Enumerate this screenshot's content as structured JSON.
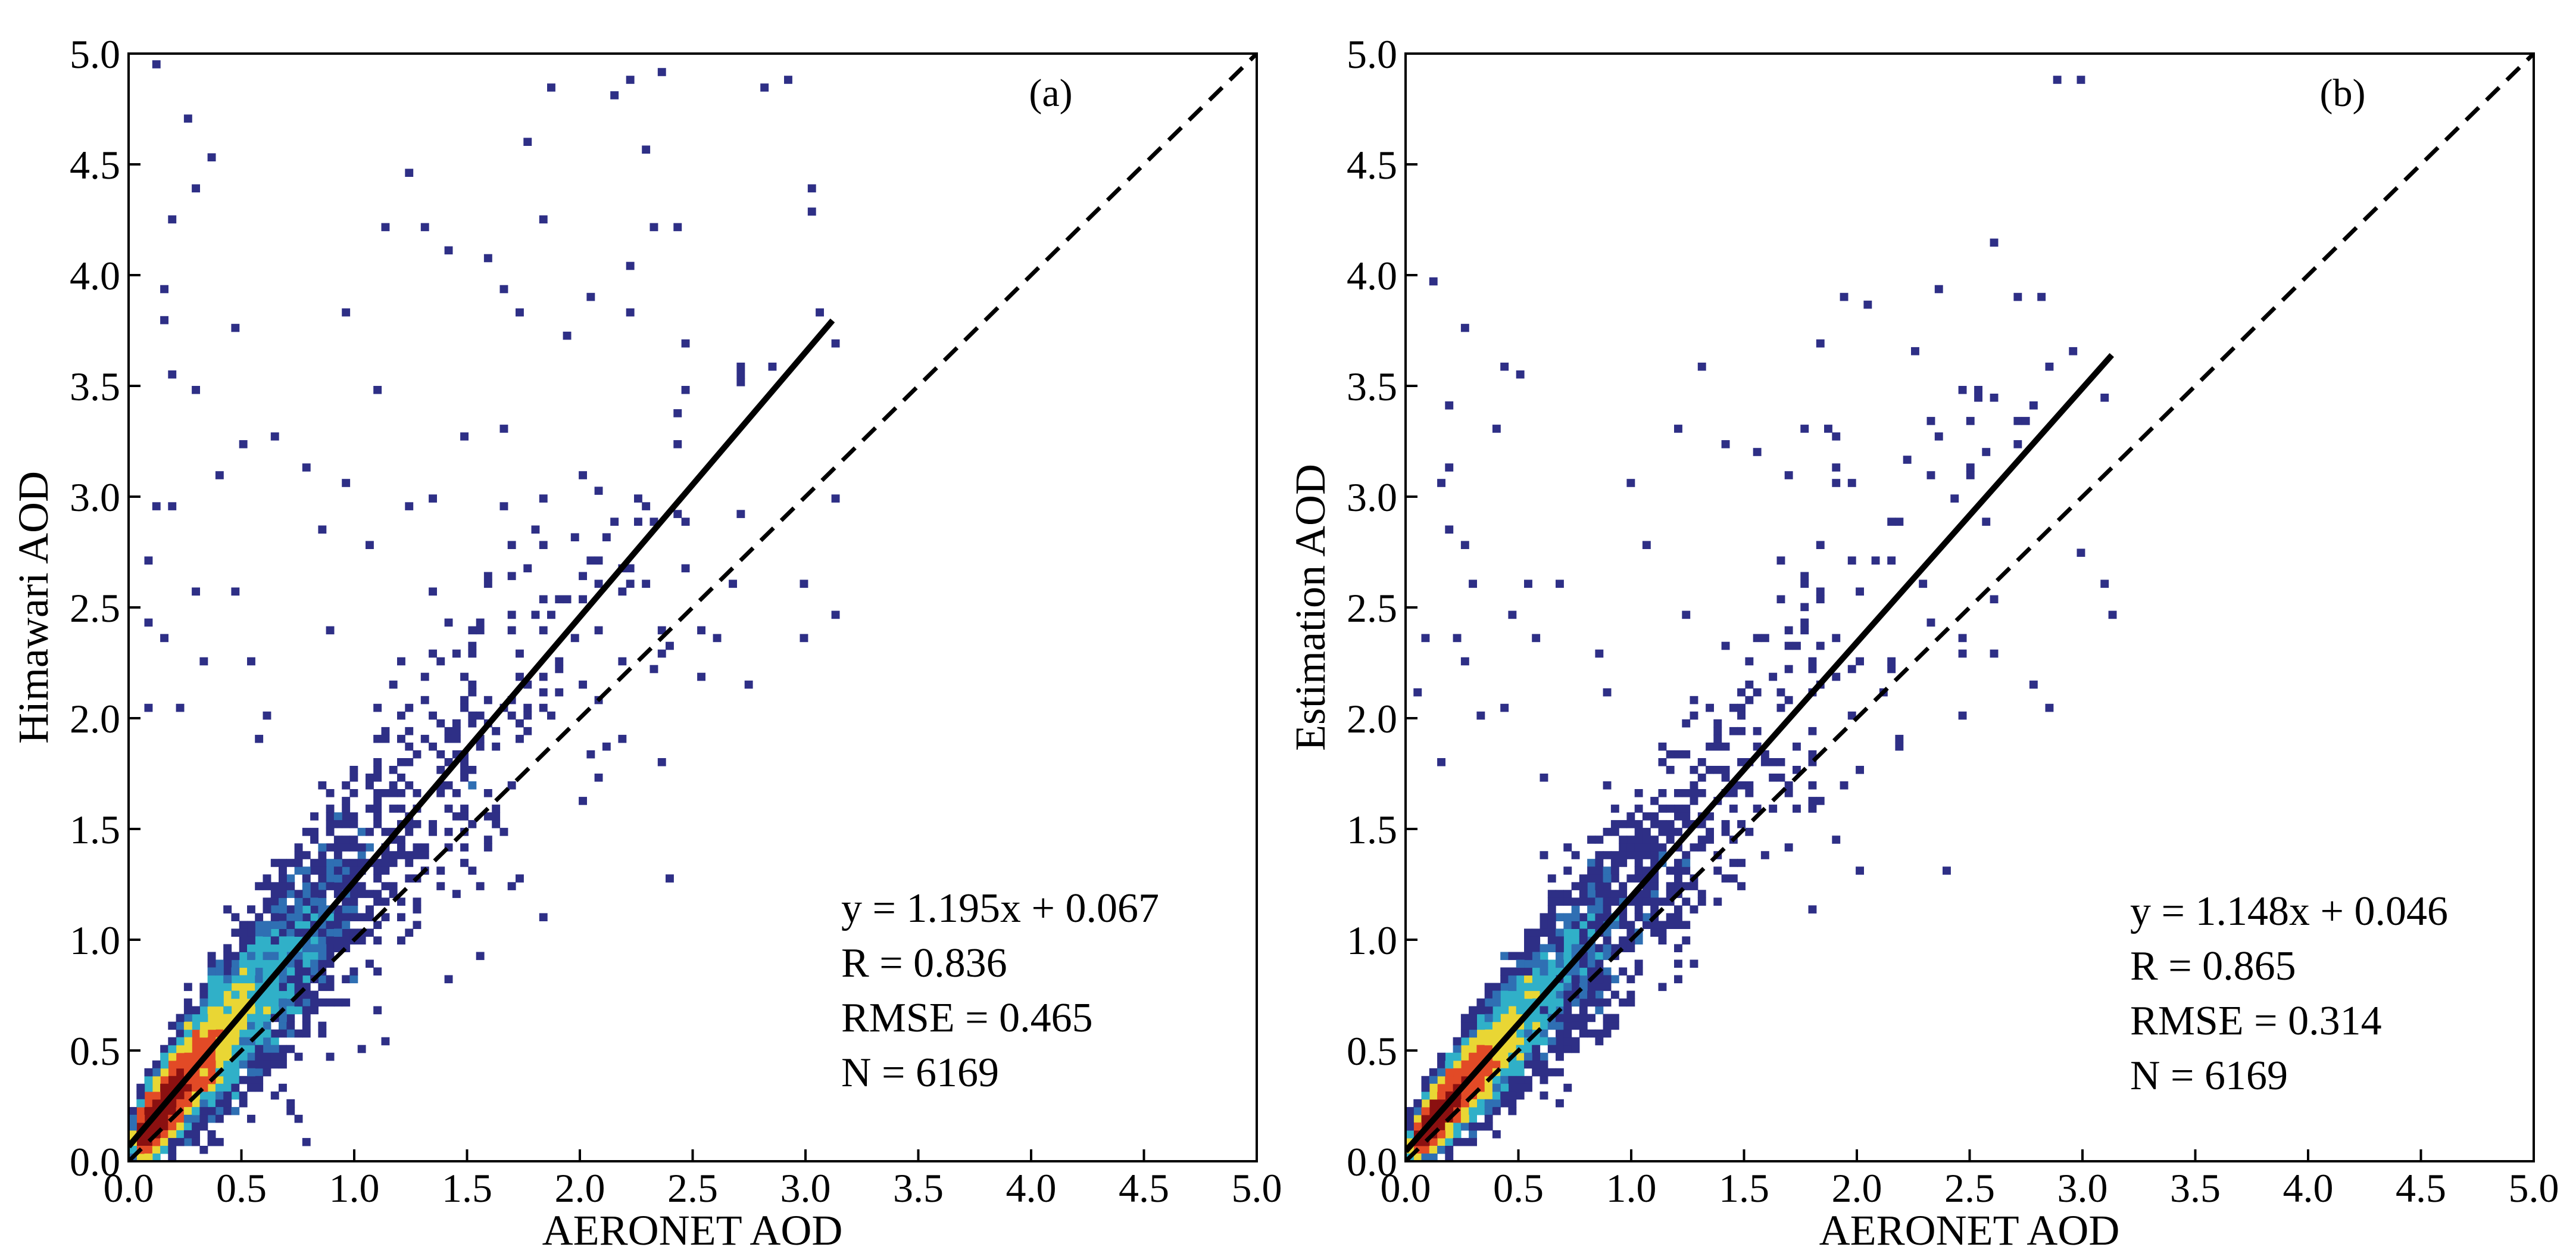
{
  "figure_title": "",
  "colors": {
    "background": "#ffffff",
    "axes": "#000000",
    "fit_line": "#000000",
    "one_to_one": "#000000",
    "density_low": "#2e2f86",
    "density_mid_low": "#2f6fb3",
    "density_mid": "#30b0c8",
    "density_mid_high": "#e9d634",
    "density_high": "#e24a26",
    "density_peak": "#8b1010"
  },
  "chart_data": [
    {
      "type": "scatter",
      "panel": "(a)",
      "title": "",
      "xlabel": "AERONET AOD",
      "ylabel": "Himawari AOD",
      "xlim": [
        0.0,
        5.0
      ],
      "ylim": [
        0.0,
        5.0
      ],
      "xticks": [
        "0.0",
        "0.5",
        "1.0",
        "1.5",
        "2.0",
        "2.5",
        "3.0",
        "3.5",
        "4.0",
        "4.5",
        "5.0"
      ],
      "yticks": [
        "0.0",
        "0.5",
        "1.0",
        "1.5",
        "2.0",
        "2.5",
        "3.0",
        "3.5",
        "4.0",
        "4.5",
        "5.0"
      ],
      "grid": false,
      "legend": "none",
      "density_colored": true,
      "fit_line": {
        "slope": 1.195,
        "intercept": 0.067,
        "x_range": [
          0.0,
          3.12
        ],
        "style": "solid"
      },
      "one_to_one_line": {
        "x_range": [
          0.0,
          5.0
        ],
        "style": "dashed"
      },
      "stats": [
        "y = 1.195x + 0.067",
        "R = 0.836",
        "RMSE = 0.465",
        "N = 6169"
      ],
      "outlier_points": [
        [
          0.12,
          4.97
        ],
        [
          0.26,
          4.7
        ],
        [
          0.37,
          4.53
        ],
        [
          0.29,
          4.4
        ],
        [
          0.19,
          4.24
        ],
        [
          0.17,
          3.95
        ],
        [
          0.14,
          3.8
        ],
        [
          0.2,
          3.55
        ],
        [
          0.28,
          3.5
        ],
        [
          0.4,
          3.1
        ],
        [
          0.5,
          3.25
        ],
        [
          0.13,
          2.97
        ],
        [
          0.21,
          2.96
        ],
        [
          0.07,
          2.7
        ],
        [
          0.46,
          2.58
        ],
        [
          0.3,
          2.58
        ],
        [
          0.08,
          2.44
        ],
        [
          0.17,
          2.35
        ],
        [
          0.1,
          2.05
        ],
        [
          0.95,
          3.85
        ],
        [
          1.1,
          3.5
        ],
        [
          1.15,
          4.2
        ],
        [
          1.25,
          4.47
        ],
        [
          1.32,
          4.23
        ],
        [
          1.42,
          4.1
        ],
        [
          1.6,
          4.08
        ],
        [
          1.65,
          3.95
        ],
        [
          1.75,
          3.85
        ],
        [
          1.78,
          4.6
        ],
        [
          1.88,
          4.86
        ],
        [
          1.85,
          4.25
        ],
        [
          2.14,
          4.82
        ],
        [
          2.22,
          4.87
        ],
        [
          2.35,
          4.9
        ],
        [
          2.28,
          4.58
        ],
        [
          2.32,
          4.2
        ],
        [
          2.22,
          3.84
        ],
        [
          2.42,
          4.2
        ],
        [
          2.48,
          3.5
        ],
        [
          2.45,
          2.9
        ],
        [
          2.52,
          2.4
        ],
        [
          2.61,
          2.36
        ],
        [
          2.75,
          2.17
        ],
        [
          3.0,
          2.37
        ],
        [
          2.92,
          4.88
        ],
        [
          2.82,
          4.85
        ],
        [
          3.0,
          2.6
        ],
        [
          3.12,
          2.47
        ],
        [
          2.4,
          1.27
        ],
        [
          2.06,
          1.85
        ],
        [
          1.95,
          3.72
        ],
        [
          2.06,
          3.9
        ],
        [
          0.48,
          3.75
        ],
        [
          0.65,
          3.28
        ],
        [
          0.8,
          3.15
        ],
        [
          0.95,
          3.05
        ],
        [
          1.25,
          2.95
        ],
        [
          1.5,
          3.28
        ],
        [
          0.55,
          2.25
        ],
        [
          0.62,
          2.0
        ],
        [
          0.9,
          2.4
        ],
        [
          1.05,
          2.8
        ],
        [
          1.7,
          1.25
        ],
        [
          1.82,
          1.1
        ],
        [
          2.2,
          1.9
        ],
        [
          2.3,
          2.6
        ],
        [
          0.35,
          2.25
        ],
        [
          0.24,
          2.05
        ],
        [
          0.56,
          1.9
        ],
        [
          1.2,
          2.25
        ],
        [
          0.85,
          2.85
        ],
        [
          1.35,
          3.0
        ]
      ]
    },
    {
      "type": "scatter",
      "panel": "(b)",
      "title": "",
      "xlabel": "AERONET AOD",
      "ylabel": "Estimation AOD",
      "xlim": [
        0.0,
        5.0
      ],
      "ylim": [
        0.0,
        5.0
      ],
      "xticks": [
        "0.0",
        "0.5",
        "1.0",
        "1.5",
        "2.0",
        "2.5",
        "3.0",
        "3.5",
        "4.0",
        "4.5",
        "5.0"
      ],
      "yticks": [
        "0.0",
        "0.5",
        "1.0",
        "1.5",
        "2.0",
        "2.5",
        "3.0",
        "3.5",
        "4.0",
        "4.5",
        "5.0"
      ],
      "grid": false,
      "legend": "none",
      "density_colored": true,
      "fit_line": {
        "slope": 1.148,
        "intercept": 0.046,
        "x_range": [
          0.0,
          3.13
        ],
        "style": "solid"
      },
      "one_to_one_line": {
        "x_range": [
          0.0,
          5.0
        ],
        "style": "dashed"
      },
      "stats": [
        "y = 1.148x + 0.046",
        "R = 0.865",
        "RMSE = 0.314",
        "N = 6169"
      ],
      "outlier_points": [
        [
          0.12,
          3.98
        ],
        [
          0.25,
          3.75
        ],
        [
          0.45,
          3.6
        ],
        [
          0.5,
          3.55
        ],
        [
          0.2,
          3.4
        ],
        [
          0.2,
          3.15
        ],
        [
          0.15,
          3.05
        ],
        [
          0.18,
          2.85
        ],
        [
          0.25,
          2.8
        ],
        [
          0.28,
          2.6
        ],
        [
          0.1,
          2.37
        ],
        [
          0.22,
          2.37
        ],
        [
          0.06,
          2.1
        ],
        [
          0.55,
          2.62
        ],
        [
          0.47,
          2.47
        ],
        [
          0.7,
          2.6
        ],
        [
          0.45,
          2.05
        ],
        [
          0.85,
          2.3
        ],
        [
          1.0,
          3.05
        ],
        [
          1.05,
          2.8
        ],
        [
          1.2,
          3.3
        ],
        [
          1.3,
          3.6
        ],
        [
          1.42,
          3.25
        ],
        [
          1.55,
          3.2
        ],
        [
          1.7,
          3.1
        ],
        [
          1.78,
          3.3
        ],
        [
          1.85,
          3.7
        ],
        [
          1.95,
          3.9
        ],
        [
          2.05,
          3.88
        ],
        [
          2.25,
          3.64
        ],
        [
          2.38,
          3.95
        ],
        [
          2.45,
          3.5
        ],
        [
          2.52,
          3.45
        ],
        [
          2.6,
          3.45
        ],
        [
          2.62,
          4.14
        ],
        [
          2.82,
          3.9
        ],
        [
          2.88,
          4.88
        ],
        [
          2.98,
          4.87
        ],
        [
          3.0,
          2.75
        ],
        [
          3.1,
          2.62
        ],
        [
          3.12,
          2.47
        ],
        [
          2.8,
          2.14
        ],
        [
          2.62,
          2.3
        ],
        [
          2.4,
          1.3
        ],
        [
          2.0,
          1.3
        ],
        [
          2.2,
          1.9
        ],
        [
          1.92,
          1.45
        ],
        [
          1.8,
          1.15
        ],
        [
          0.35,
          2.0
        ],
        [
          0.6,
          1.75
        ],
        [
          0.58,
          2.35
        ],
        [
          0.9,
          2.1
        ],
        [
          2.15,
          2.9
        ],
        [
          2.3,
          2.6
        ],
        [
          0.27,
          2.25
        ],
        [
          0.62,
          1.4
        ],
        [
          1.65,
          2.05
        ],
        [
          1.25,
          2.45
        ],
        [
          0.16,
          1.8
        ],
        [
          0.42,
          3.3
        ]
      ]
    }
  ]
}
